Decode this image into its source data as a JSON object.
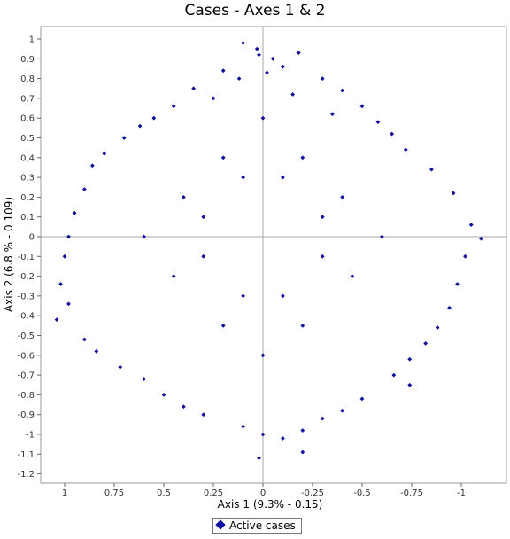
{
  "chart_data": {
    "type": "scatter",
    "title": "Cases - Axes 1 & 2",
    "xlabel": "Axis 1 (9.3% - 0.15)",
    "ylabel": "Axis 2 (6.8 % - 0.109)",
    "xlim": [
      1.1,
      -1.12
    ],
    "ylim": [
      -1.23,
      1.05
    ],
    "x_ticks": [
      "1",
      "0.75",
      "0.5",
      "0.25",
      "0",
      "-0.25",
      "-0.5",
      "-0.75",
      "-1"
    ],
    "x_tick_values": [
      1,
      0.75,
      0.5,
      0.25,
      0,
      -0.25,
      -0.5,
      -0.75,
      -1
    ],
    "y_ticks": [
      "1",
      "0.9",
      "0.8",
      "0.7",
      "0.6",
      "0.5",
      "0.4",
      "0.3",
      "0.2",
      "0.1",
      "0",
      "-0.1",
      "-0.2",
      "-0.3",
      "-0.4",
      "-0.5",
      "-0.6",
      "-0.7",
      "-0.8",
      "-0.9",
      "-1",
      "-1.1",
      "-1.2"
    ],
    "y_tick_values": [
      1,
      0.9,
      0.8,
      0.7,
      0.6,
      0.5,
      0.4,
      0.3,
      0.2,
      0.1,
      0,
      -0.1,
      -0.2,
      -0.3,
      -0.4,
      -0.5,
      -0.6,
      -0.7,
      -0.8,
      -0.9,
      -1,
      -1.1,
      -1.2
    ],
    "legend_position": "bottom",
    "grid": false,
    "origin_lines": true,
    "point_color": "#1010a0",
    "series": [
      {
        "name": "Active cases",
        "marker": "diamond",
        "points": [
          [
            0.03,
            0.95
          ],
          [
            0.1,
            0.98
          ],
          [
            -0.18,
            0.93
          ],
          [
            -0.05,
            0.9
          ],
          [
            0.02,
            0.92
          ],
          [
            -0.1,
            0.86
          ],
          [
            0.2,
            0.84
          ],
          [
            -0.3,
            0.8
          ],
          [
            0.12,
            0.8
          ],
          [
            -0.02,
            0.83
          ],
          [
            0.35,
            0.75
          ],
          [
            -0.4,
            0.74
          ],
          [
            0.25,
            0.7
          ],
          [
            -0.15,
            0.72
          ],
          [
            0.45,
            0.66
          ],
          [
            -0.5,
            0.66
          ],
          [
            0.55,
            0.6
          ],
          [
            -0.35,
            0.62
          ],
          [
            0.62,
            0.56
          ],
          [
            -0.58,
            0.58
          ],
          [
            0.7,
            0.5
          ],
          [
            -0.65,
            0.52
          ],
          [
            0.8,
            0.42
          ],
          [
            -0.72,
            0.44
          ],
          [
            0.86,
            0.36
          ],
          [
            -0.85,
            0.34
          ],
          [
            0.9,
            0.24
          ],
          [
            -0.96,
            0.22
          ],
          [
            0.95,
            0.12
          ],
          [
            -1.05,
            0.06
          ],
          [
            0.98,
            0.0
          ],
          [
            -1.1,
            -0.01
          ],
          [
            1.0,
            -0.1
          ],
          [
            -1.02,
            -0.1
          ],
          [
            1.02,
            -0.24
          ],
          [
            -0.98,
            -0.24
          ],
          [
            0.98,
            -0.34
          ],
          [
            -0.94,
            -0.36
          ],
          [
            1.04,
            -0.42
          ],
          [
            -0.88,
            -0.46
          ],
          [
            0.9,
            -0.52
          ],
          [
            -0.82,
            -0.54
          ],
          [
            0.84,
            -0.58
          ],
          [
            -0.74,
            -0.62
          ],
          [
            0.72,
            -0.66
          ],
          [
            -0.66,
            -0.7
          ],
          [
            0.6,
            -0.72
          ],
          [
            -0.74,
            -0.75
          ],
          [
            0.5,
            -0.8
          ],
          [
            -0.5,
            -0.82
          ],
          [
            0.4,
            -0.86
          ],
          [
            -0.4,
            -0.88
          ],
          [
            0.3,
            -0.9
          ],
          [
            -0.3,
            -0.92
          ],
          [
            0.1,
            -0.96
          ],
          [
            -0.2,
            -0.98
          ],
          [
            0.0,
            -1.0
          ],
          [
            -0.1,
            -1.02
          ],
          [
            -0.2,
            -1.09
          ],
          [
            0.02,
            -1.12
          ],
          [
            0.4,
            0.2
          ],
          [
            -0.4,
            0.2
          ],
          [
            0.2,
            0.4
          ],
          [
            -0.2,
            0.4
          ],
          [
            0.45,
            -0.2
          ],
          [
            -0.45,
            -0.2
          ],
          [
            0.2,
            -0.45
          ],
          [
            -0.2,
            -0.45
          ],
          [
            0.6,
            0.0
          ],
          [
            -0.6,
            0.0
          ],
          [
            0.0,
            0.6
          ],
          [
            0.0,
            -0.6
          ],
          [
            0.3,
            0.1
          ],
          [
            -0.3,
            0.1
          ],
          [
            0.1,
            0.3
          ],
          [
            -0.1,
            0.3
          ],
          [
            0.3,
            -0.1
          ],
          [
            -0.3,
            -0.1
          ],
          [
            0.1,
            -0.3
          ],
          [
            -0.1,
            -0.3
          ]
        ]
      }
    ]
  },
  "legend": {
    "label": "Active cases"
  }
}
